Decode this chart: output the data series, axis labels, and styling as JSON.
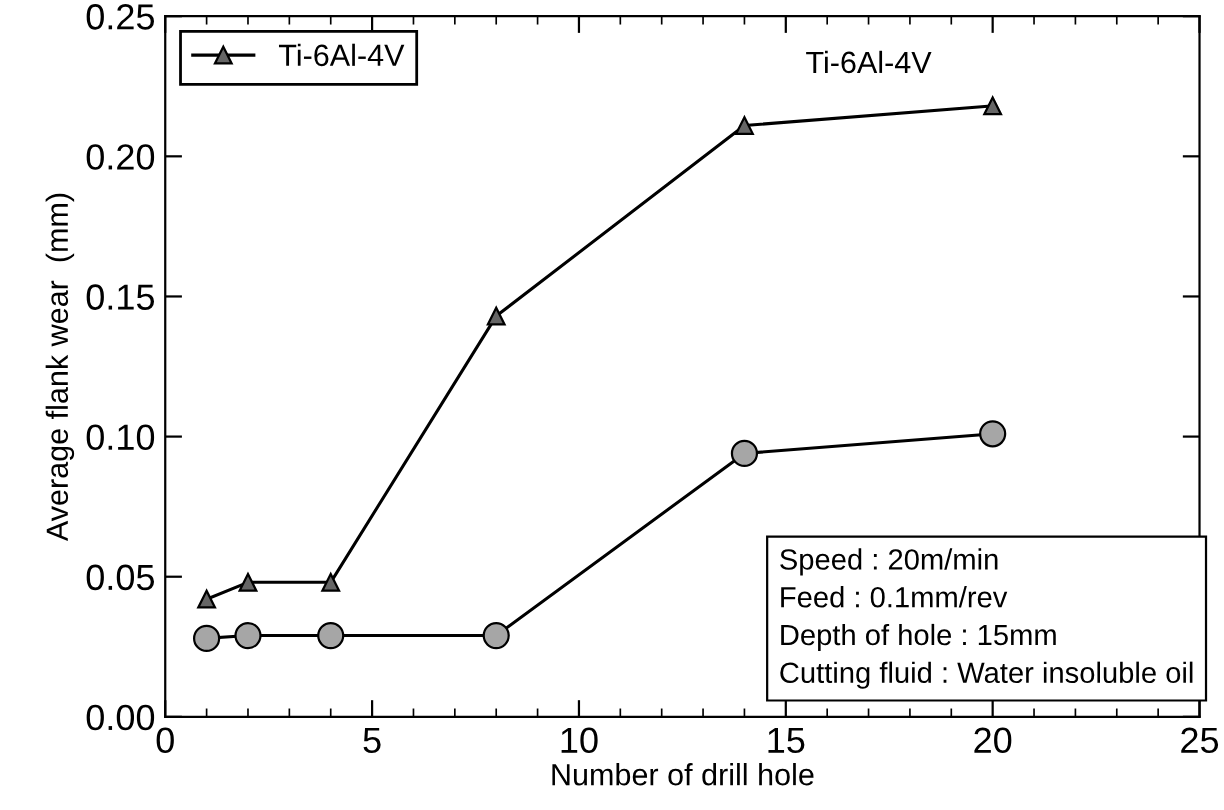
{
  "chart_data": {
    "type": "line",
    "xlabel": "Number of drill hole",
    "ylabel": "Average flank wear  (mm)",
    "xlim": [
      0,
      25
    ],
    "xticks": [
      0,
      5,
      10,
      15,
      20,
      25
    ],
    "ylim": [
      0,
      0.25
    ],
    "yticks": [
      {
        "value": 0,
        "label": "0.00"
      },
      {
        "value": 0.05,
        "label": "0.05"
      },
      {
        "value": 0.1,
        "label": "0.10"
      },
      {
        "value": 0.15,
        "label": "0.15"
      },
      {
        "value": 0.2,
        "label": "0.20"
      },
      {
        "value": 0.25,
        "label": "0.25"
      }
    ],
    "x": [
      1,
      2,
      4,
      8,
      14,
      20
    ],
    "series": [
      {
        "color": "#a6a6a6",
        "marker": "circle",
        "values": [
          0.028,
          0.029,
          0.029,
          0.029,
          0.094,
          0.101
        ]
      },
      {
        "name": "Ti-6Al-4V",
        "color": "#666666",
        "marker": "triangle",
        "values": [
          0.042,
          0.048,
          0.048,
          0.143,
          0.211,
          0.218
        ]
      }
    ],
    "legend": "top left",
    "grid": false,
    "annotations": [
      "Ti-6Al-4V",
      "Speed : 20m/min\nFeed : 0.1mm/rev\nDepth of hole : 15mm\nCutting fluid : Water insoluble oil"
    ]
  }
}
